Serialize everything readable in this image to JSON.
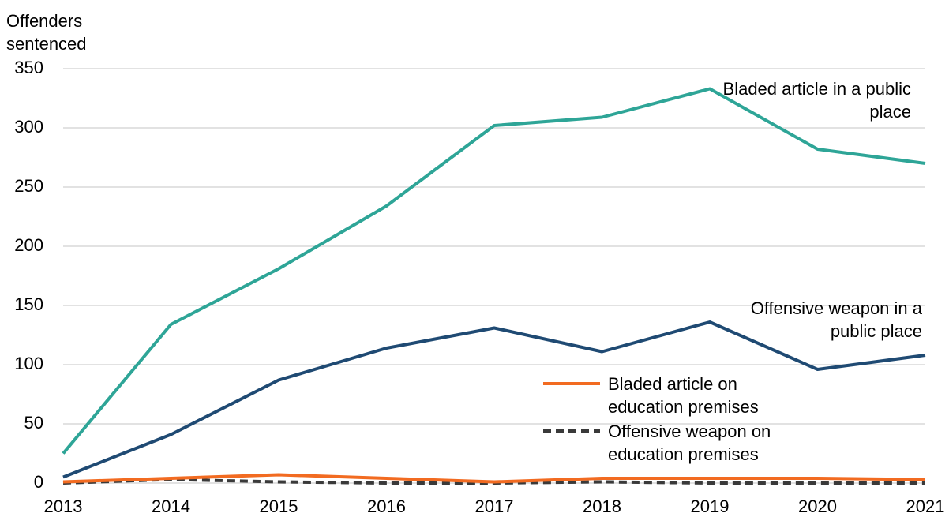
{
  "chart_data": {
    "type": "line",
    "y_label": "Offenders sentenced",
    "x": [
      2013,
      2014,
      2015,
      2016,
      2017,
      2018,
      2019,
      2020,
      2021
    ],
    "xlim": [
      2013,
      2021
    ],
    "xticks": [
      2013,
      2014,
      2015,
      2016,
      2017,
      2018,
      2019,
      2020,
      2021
    ],
    "ylim": [
      0,
      350
    ],
    "yticks": [
      0,
      50,
      100,
      150,
      200,
      250,
      300,
      350
    ],
    "grid": true,
    "series": [
      {
        "name": "Bladed article in a public place",
        "color": "#2ea597",
        "values": [
          25,
          134,
          181,
          234,
          302,
          309,
          333,
          282,
          270
        ]
      },
      {
        "name": "Offensive weapon in a public place",
        "color": "#1f4a73",
        "values": [
          5,
          41,
          87,
          114,
          131,
          111,
          136,
          96,
          108
        ]
      },
      {
        "name": "Bladed article on education premises",
        "color": "#f26b21",
        "values": [
          1,
          4,
          7,
          4,
          1,
          4,
          4,
          4,
          3
        ]
      },
      {
        "name": "Offensive weapon on education premises",
        "color": "#3a3a3a",
        "dashed": true,
        "values": [
          0,
          3,
          1,
          0,
          0,
          1,
          0,
          0,
          0
        ]
      }
    ]
  }
}
